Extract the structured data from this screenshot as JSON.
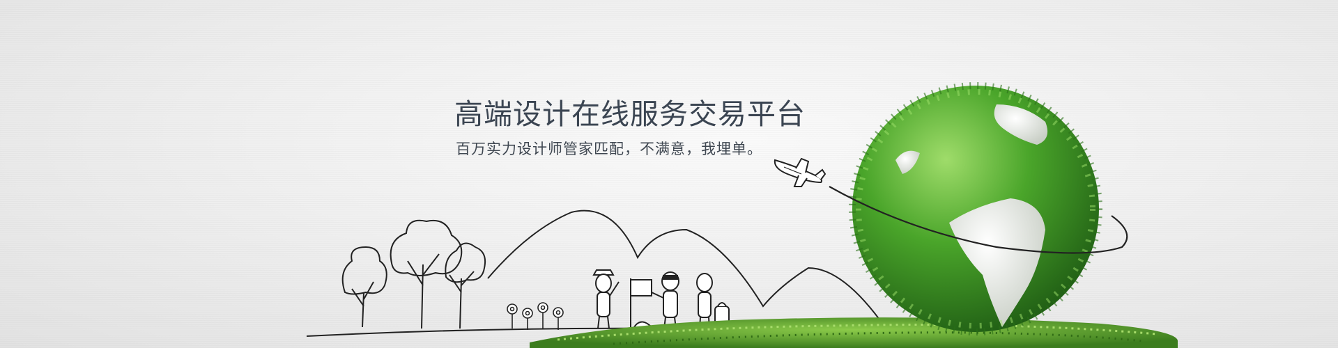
{
  "banner": {
    "headline": "高端设计在线服务交易平台",
    "subline": "百万实力设计师管家匹配，不满意，我埋单。"
  },
  "colors": {
    "background": "#f0f0f0",
    "headline": "#3b4552",
    "sketch": "#222222",
    "globe_green": "#4aa52a",
    "grass_green": "#5fae2f"
  },
  "icons": [
    "tree-icon",
    "flower-icon",
    "person-icon",
    "flag-icon",
    "airplane-icon",
    "globe-icon"
  ]
}
